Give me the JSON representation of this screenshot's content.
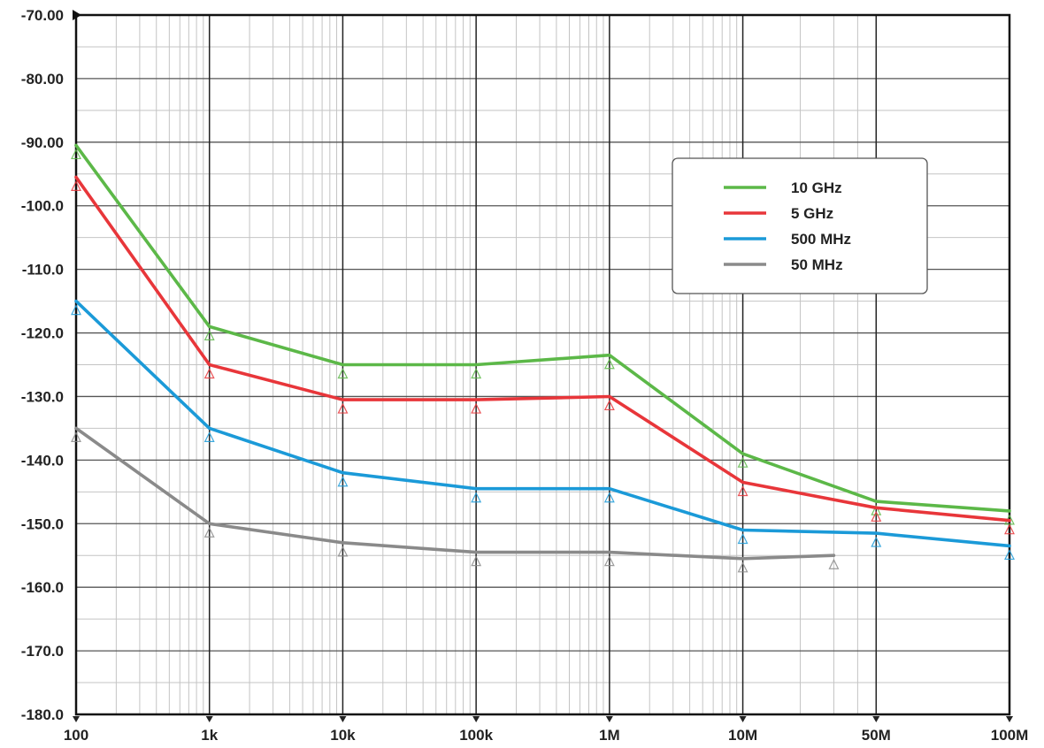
{
  "chart_data": {
    "type": "line",
    "x_scale": "log",
    "grid": true,
    "legend_position": "top-right",
    "ylim": [
      -180,
      -70
    ],
    "xlim": [
      100,
      100000000
    ],
    "y_ticks": [
      {
        "value": -70,
        "label": "-70.00"
      },
      {
        "value": -80,
        "label": "-80.00"
      },
      {
        "value": -90,
        "label": "-90.00"
      },
      {
        "value": -100,
        "label": "-100.0"
      },
      {
        "value": -110,
        "label": "-110.0"
      },
      {
        "value": -120,
        "label": "-120.0"
      },
      {
        "value": -130,
        "label": "-130.0"
      },
      {
        "value": -140,
        "label": "-140.0"
      },
      {
        "value": -150,
        "label": "-150.0"
      },
      {
        "value": -160,
        "label": "-160.0"
      },
      {
        "value": -170,
        "label": "-170.0"
      },
      {
        "value": -180,
        "label": "-180.0"
      }
    ],
    "x_ticks": [
      "100",
      "1k",
      "10k",
      "100k",
      "1M",
      "10M",
      "50M",
      "100M"
    ],
    "series": [
      {
        "name": "10 GHz",
        "color": "#5cb848",
        "x": [
          "100",
          "1k",
          "10k",
          "100k",
          "1M",
          "10M",
          "50M",
          "100M"
        ],
        "values": [
          -90.5,
          -119,
          -125,
          -125,
          -123.5,
          -139,
          -146.5,
          -148
        ]
      },
      {
        "name": "5 GHz",
        "color": "#e8363a",
        "x": [
          "100",
          "1k",
          "10k",
          "100k",
          "1M",
          "10M",
          "50M",
          "100M"
        ],
        "values": [
          -95.5,
          -125,
          -130.5,
          -130.5,
          -130,
          -143.5,
          -147.5,
          -149.5
        ]
      },
      {
        "name": "500 MHz",
        "color": "#1b9ad8",
        "x": [
          "100",
          "1k",
          "10k",
          "100k",
          "1M",
          "10M",
          "50M",
          "100M"
        ],
        "values": [
          -115,
          -135,
          -142,
          -144.5,
          -144.5,
          -151,
          -151.5,
          -153.5
        ]
      },
      {
        "name": "50 MHz",
        "color": "#8a8a8a",
        "x": [
          "100",
          "1k",
          "10k",
          "100k",
          "1M",
          "10M",
          "30M"
        ],
        "values": [
          -135,
          -150,
          -153,
          -154.5,
          -154.5,
          -155.5,
          -155
        ]
      }
    ]
  }
}
